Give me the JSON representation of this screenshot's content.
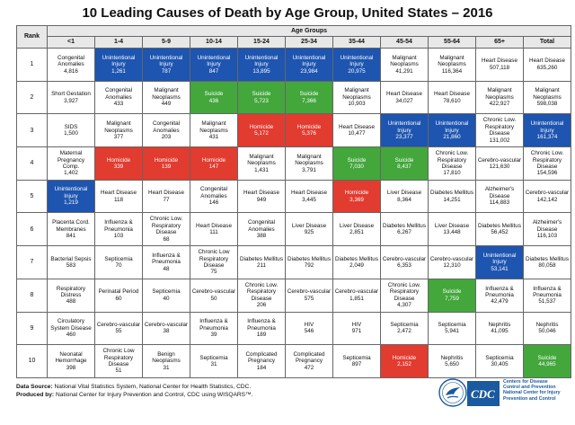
{
  "title": "10 Leading Causes of Death by Age Group, United States – 2016",
  "group_header": "Age Groups",
  "rank_header": "Rank",
  "columns": [
    "<1",
    "1-4",
    "5-9",
    "10-14",
    "15-24",
    "25-34",
    "35-44",
    "45-54",
    "55-64",
    "65+",
    "Total"
  ],
  "highlight_colors": {
    "unintentional_injury": "#1d55b0",
    "suicide": "#43a73c",
    "homicide": "#e23b2f"
  },
  "rows": [
    {
      "rank": "1",
      "cells": [
        {
          "cause": "Congenital Anomalies",
          "count": "4,816",
          "hl": ""
        },
        {
          "cause": "Unintentional Injury",
          "count": "1,261",
          "hl": "unintentional_injury"
        },
        {
          "cause": "Unintentional Injury",
          "count": "787",
          "hl": "unintentional_injury"
        },
        {
          "cause": "Unintentional Injury",
          "count": "847",
          "hl": "unintentional_injury"
        },
        {
          "cause": "Unintentional Injury",
          "count": "13,895",
          "hl": "unintentional_injury"
        },
        {
          "cause": "Unintentional Injury",
          "count": "23,984",
          "hl": "unintentional_injury"
        },
        {
          "cause": "Unintentional Injury",
          "count": "20,975",
          "hl": "unintentional_injury"
        },
        {
          "cause": "Malignant Neoplasms",
          "count": "41,291",
          "hl": ""
        },
        {
          "cause": "Malignant Neoplasms",
          "count": "116,364",
          "hl": ""
        },
        {
          "cause": "Heart Disease",
          "count": "507,118",
          "hl": ""
        },
        {
          "cause": "Heart Disease",
          "count": "635,260",
          "hl": ""
        }
      ]
    },
    {
      "rank": "2",
      "cells": [
        {
          "cause": "Short Gestation",
          "count": "3,927",
          "hl": ""
        },
        {
          "cause": "Congenital Anomalies",
          "count": "433",
          "hl": ""
        },
        {
          "cause": "Malignant Neoplasms",
          "count": "449",
          "hl": ""
        },
        {
          "cause": "Suicide",
          "count": "436",
          "hl": "suicide"
        },
        {
          "cause": "Suicide",
          "count": "5,723",
          "hl": "suicide"
        },
        {
          "cause": "Suicide",
          "count": "7,366",
          "hl": "suicide"
        },
        {
          "cause": "Malignant Neoplasms",
          "count": "10,903",
          "hl": ""
        },
        {
          "cause": "Heart Disease",
          "count": "34,027",
          "hl": ""
        },
        {
          "cause": "Heart Disease",
          "count": "78,610",
          "hl": ""
        },
        {
          "cause": "Malignant Neoplasms",
          "count": "422,927",
          "hl": ""
        },
        {
          "cause": "Malignant Neoplasms",
          "count": "598,038",
          "hl": ""
        }
      ]
    },
    {
      "rank": "3",
      "cells": [
        {
          "cause": "SIDS",
          "count": "1,500",
          "hl": ""
        },
        {
          "cause": "Malignant Neoplasms",
          "count": "377",
          "hl": ""
        },
        {
          "cause": "Congenital Anomalies",
          "count": "203",
          "hl": ""
        },
        {
          "cause": "Malignant Neoplasms",
          "count": "431",
          "hl": ""
        },
        {
          "cause": "Homicide",
          "count": "5,172",
          "hl": "homicide"
        },
        {
          "cause": "Homicide",
          "count": "5,376",
          "hl": "homicide"
        },
        {
          "cause": "Heart Disease",
          "count": "10,477",
          "hl": ""
        },
        {
          "cause": "Unintentional Injury",
          "count": "23,377",
          "hl": "unintentional_injury"
        },
        {
          "cause": "Unintentional Injury",
          "count": "21,860",
          "hl": "unintentional_injury"
        },
        {
          "cause": "Chronic Low. Respiratory Disease",
          "count": "131,002",
          "hl": ""
        },
        {
          "cause": "Unintentional Injury",
          "count": "161,374",
          "hl": "unintentional_injury"
        }
      ]
    },
    {
      "rank": "4",
      "cells": [
        {
          "cause": "Maternal Pregnancy Comp.",
          "count": "1,402",
          "hl": ""
        },
        {
          "cause": "Homicide",
          "count": "339",
          "hl": "homicide"
        },
        {
          "cause": "Homicide",
          "count": "139",
          "hl": "homicide"
        },
        {
          "cause": "Homicide",
          "count": "147",
          "hl": "homicide"
        },
        {
          "cause": "Malignant Neoplasms",
          "count": "1,431",
          "hl": ""
        },
        {
          "cause": "Malignant Neoplasms",
          "count": "3,791",
          "hl": ""
        },
        {
          "cause": "Suicide",
          "count": "7,030",
          "hl": "suicide"
        },
        {
          "cause": "Suicide",
          "count": "8,437",
          "hl": "suicide"
        },
        {
          "cause": "Chronic Low. Respiratory Disease",
          "count": "17,810",
          "hl": ""
        },
        {
          "cause": "Cerebro-vascular",
          "count": "121,630",
          "hl": ""
        },
        {
          "cause": "Chronic Low. Respiratory Disease",
          "count": "154,596",
          "hl": ""
        }
      ]
    },
    {
      "rank": "5",
      "cells": [
        {
          "cause": "Unintentional Injury",
          "count": "1,219",
          "hl": "unintentional_injury"
        },
        {
          "cause": "Heart Disease",
          "count": "118",
          "hl": ""
        },
        {
          "cause": "Heart Disease",
          "count": "77",
          "hl": ""
        },
        {
          "cause": "Congenital Anomalies",
          "count": "146",
          "hl": ""
        },
        {
          "cause": "Heart Disease",
          "count": "949",
          "hl": ""
        },
        {
          "cause": "Heart Disease",
          "count": "3,445",
          "hl": ""
        },
        {
          "cause": "Homicide",
          "count": "3,369",
          "hl": "homicide"
        },
        {
          "cause": "Liver Disease",
          "count": "8,364",
          "hl": ""
        },
        {
          "cause": "Diabetes Mellitus",
          "count": "14,251",
          "hl": ""
        },
        {
          "cause": "Alzheimer's Disease",
          "count": "114,883",
          "hl": ""
        },
        {
          "cause": "Cerebro-vascular",
          "count": "142,142",
          "hl": ""
        }
      ]
    },
    {
      "rank": "6",
      "cells": [
        {
          "cause": "Placenta Cord. Membranes",
          "count": "841",
          "hl": ""
        },
        {
          "cause": "Influenza & Pneumonia",
          "count": "103",
          "hl": ""
        },
        {
          "cause": "Chronic Low. Respiratory Disease",
          "count": "68",
          "hl": ""
        },
        {
          "cause": "Heart Disease",
          "count": "111",
          "hl": ""
        },
        {
          "cause": "Congenital Anomalies",
          "count": "388",
          "hl": ""
        },
        {
          "cause": "Liver Disease",
          "count": "925",
          "hl": ""
        },
        {
          "cause": "Liver Disease",
          "count": "2,851",
          "hl": ""
        },
        {
          "cause": "Diabetes Mellitus",
          "count": "6,267",
          "hl": ""
        },
        {
          "cause": "Liver Disease",
          "count": "13,448",
          "hl": ""
        },
        {
          "cause": "Diabetes Mellitus",
          "count": "56,452",
          "hl": ""
        },
        {
          "cause": "Alzheimer's Disease",
          "count": "116,103",
          "hl": ""
        }
      ]
    },
    {
      "rank": "7",
      "cells": [
        {
          "cause": "Bacterial Sepsis",
          "count": "583",
          "hl": ""
        },
        {
          "cause": "Septicemia",
          "count": "70",
          "hl": ""
        },
        {
          "cause": "Influenza & Pneumonia",
          "count": "48",
          "hl": ""
        },
        {
          "cause": "Chronic Low Respiratory Disease",
          "count": "75",
          "hl": ""
        },
        {
          "cause": "Diabetes Mellitus",
          "count": "211",
          "hl": ""
        },
        {
          "cause": "Diabetes Mellitus",
          "count": "792",
          "hl": ""
        },
        {
          "cause": "Diabetes Mellitus",
          "count": "2,049",
          "hl": ""
        },
        {
          "cause": "Cerebro-vascular",
          "count": "6,353",
          "hl": ""
        },
        {
          "cause": "Cerebro-vascular",
          "count": "12,310",
          "hl": ""
        },
        {
          "cause": "Unintentional Injury",
          "count": "53,141",
          "hl": "unintentional_injury"
        },
        {
          "cause": "Diabetes Mellitus",
          "count": "80,058",
          "hl": ""
        }
      ]
    },
    {
      "rank": "8",
      "cells": [
        {
          "cause": "Respiratory Distress",
          "count": "488",
          "hl": ""
        },
        {
          "cause": "Perinatal Period",
          "count": "60",
          "hl": ""
        },
        {
          "cause": "Septicemia",
          "count": "40",
          "hl": ""
        },
        {
          "cause": "Cerebro-vascular",
          "count": "50",
          "hl": ""
        },
        {
          "cause": "Chronic Low. Respiratory Disease",
          "count": "206",
          "hl": ""
        },
        {
          "cause": "Cerebro-vascular",
          "count": "575",
          "hl": ""
        },
        {
          "cause": "Cerebro-vascular",
          "count": "1,851",
          "hl": ""
        },
        {
          "cause": "Chronic Low. Respiratory Disease",
          "count": "4,307",
          "hl": ""
        },
        {
          "cause": "Suicide",
          "count": "7,759",
          "hl": "suicide"
        },
        {
          "cause": "Influenza & Pneumonia",
          "count": "42,479",
          "hl": ""
        },
        {
          "cause": "Influenza & Pneumonia",
          "count": "51,537",
          "hl": ""
        }
      ]
    },
    {
      "rank": "9",
      "cells": [
        {
          "cause": "Circulatory System Disease",
          "count": "460",
          "hl": ""
        },
        {
          "cause": "Cerebro-vascular",
          "count": "55",
          "hl": ""
        },
        {
          "cause": "Cerebro-vascular",
          "count": "38",
          "hl": ""
        },
        {
          "cause": "Influenza & Pneumonia",
          "count": "39",
          "hl": ""
        },
        {
          "cause": "Influenza & Pneumonia",
          "count": "189",
          "hl": ""
        },
        {
          "cause": "HIV",
          "count": "546",
          "hl": ""
        },
        {
          "cause": "HIV",
          "count": "971",
          "hl": ""
        },
        {
          "cause": "Septicemia",
          "count": "2,472",
          "hl": ""
        },
        {
          "cause": "Septicemia",
          "count": "5,941",
          "hl": ""
        },
        {
          "cause": "Nephritis",
          "count": "41,095",
          "hl": ""
        },
        {
          "cause": "Nephritis",
          "count": "50,046",
          "hl": ""
        }
      ]
    },
    {
      "rank": "10",
      "cells": [
        {
          "cause": "Neonatal Hemorrhage",
          "count": "398",
          "hl": ""
        },
        {
          "cause": "Chronic Low Respiratory Disease",
          "count": "51",
          "hl": ""
        },
        {
          "cause": "Benign Neoplasms",
          "count": "31",
          "hl": ""
        },
        {
          "cause": "Septicemia",
          "count": "31",
          "hl": ""
        },
        {
          "cause": "Complicated Pregnancy",
          "count": "184",
          "hl": ""
        },
        {
          "cause": "Complicated Pregnancy",
          "count": "472",
          "hl": ""
        },
        {
          "cause": "Septicemia",
          "count": "897",
          "hl": ""
        },
        {
          "cause": "Homicide",
          "count": "2,152",
          "hl": "homicide"
        },
        {
          "cause": "Nephritis",
          "count": "5,650",
          "hl": ""
        },
        {
          "cause": "Septicemia",
          "count": "30,405",
          "hl": ""
        },
        {
          "cause": "Suicide",
          "count": "44,965",
          "hl": "suicide"
        }
      ]
    }
  ],
  "footer": {
    "source_label": "Data Source:",
    "source_text": "National Vital Statistics System, National Center for Health Statistics, CDC.",
    "produced_label": "Produced by:",
    "produced_text": "National Center for Injury Prevention and Control, CDC using WISQARS™."
  },
  "logo": {
    "mark": "CDC",
    "line1": "Centers for Disease",
    "line2": "Control and Prevention",
    "line3": "National Center for Injury",
    "line4": "Prevention and Control"
  }
}
